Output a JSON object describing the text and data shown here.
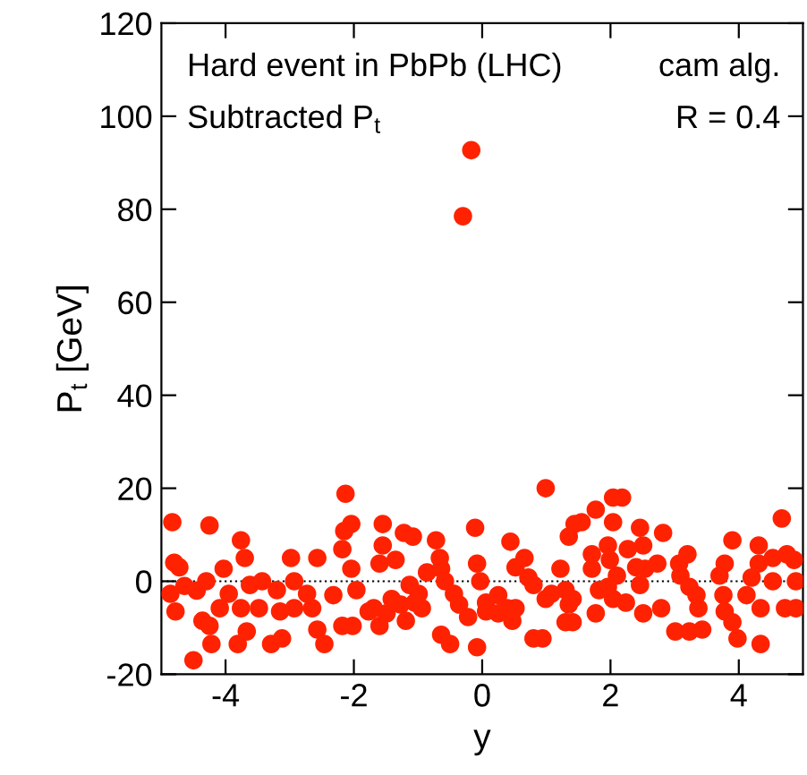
{
  "chart_data": {
    "type": "scatter",
    "xlabel": "y",
    "ylabel": "P$_{t}$ [GeV]",
    "annotations": [
      "Hard event in PbPb (LHC)",
      "Subtracted P$_{t}$",
      "cam alg.",
      "R = 0.4"
    ],
    "xlim": [
      -5,
      5
    ],
    "ylim": [
      -20,
      120
    ],
    "xticks": [
      -4,
      -2,
      0,
      2,
      4
    ],
    "yticks": [
      -20,
      0,
      20,
      40,
      60,
      80,
      100,
      120
    ],
    "grid": false,
    "marker": "circle",
    "ref_lines": [
      {
        "axis": "y",
        "value": 0,
        "color": "#000000",
        "line_style": "dotted"
      }
    ],
    "series": [
      {
        "color": "#ff2200",
        "x": [
          -4.83,
          -4.25,
          -4.8,
          -4.72,
          -4.86,
          -4.78,
          -4.64,
          -4.45,
          -4.3,
          -4.36,
          -4.25,
          -4.22,
          -4.5,
          -4.03,
          -4.09,
          -3.95,
          -3.76,
          -3.7,
          -3.76,
          -3.62,
          -3.67,
          -3.81,
          -3.43,
          -3.48,
          -3.29,
          -3.12,
          -3.2,
          -3.15,
          -2.98,
          -2.93,
          -2.93,
          -2.73,
          -2.65,
          -2.57,
          -2.57,
          -2.46,
          -2.32,
          -2.18,
          -2.02,
          -2.18,
          -2.15,
          -2.04,
          -2.13,
          -2.04,
          -1.96,
          -1.77,
          -1.55,
          -1.22,
          -1.08,
          -1.55,
          -1.6,
          -1.35,
          -1.69,
          -1.49,
          -1.6,
          -1.41,
          -1.27,
          -1.19,
          -1.13,
          -0.99,
          -1.05,
          -0.94,
          -0.86,
          -0.72,
          -0.66,
          -0.64,
          -0.58,
          -0.44,
          -0.36,
          -0.22,
          -0.64,
          -0.5,
          -0.11,
          -0.08,
          -0.03,
          0.06,
          0.06,
          0.25,
          0.25,
          -0.08,
          0.44,
          0.52,
          0.66,
          0.72,
          0.39,
          0.47,
          0.52,
          0.8,
          0.94,
          0.8,
          0.99,
          1.08,
          1.22,
          1.3,
          1.35,
          1.3,
          0.99,
          1.35,
          1.44,
          1.55,
          1.77,
          2.04,
          2.18,
          2.04,
          1.71,
          1.71,
          1.82,
          1.41,
          1.41,
          1.77,
          1.96,
          1.99,
          2.1,
          1.96,
          2.04,
          2.24,
          2.27,
          2.46,
          2.51,
          2.4,
          2.46,
          2.54,
          2.51,
          2.73,
          2.82,
          2.79,
          3.07,
          3.2,
          3.09,
          3.23,
          3.34,
          3.37,
          3.01,
          3.23,
          3.43,
          3.7,
          3.78,
          3.9,
          3.76,
          3.78,
          3.9,
          3.98,
          4.12,
          4.2,
          4.31,
          4.31,
          4.34,
          4.34,
          4.53,
          4.53,
          4.67,
          4.72,
          4.75,
          4.86,
          4.89,
          4.89,
          -0.3,
          -0.17
        ],
        "values": [
          12.7,
          12,
          4,
          3,
          -2.7,
          -6.5,
          -1,
          -2,
          0,
          -8.5,
          -9.6,
          -13.5,
          -17,
          2.7,
          -5.8,
          -2.7,
          8.8,
          5,
          -5.8,
          -0.8,
          -10.8,
          -13.5,
          0,
          -5.8,
          -13.5,
          -12.3,
          -1.9,
          -6.5,
          5,
          0,
          -5.8,
          -2.7,
          -5.8,
          5,
          -10.4,
          -13.5,
          -3,
          -9.6,
          -9.6,
          6.9,
          10.8,
          12.3,
          18.8,
          2.7,
          -1.9,
          -6.5,
          12.3,
          10.4,
          9.6,
          7.7,
          3.8,
          4.6,
          -5.8,
          -6.9,
          -9.6,
          -3.8,
          -5,
          -8.5,
          -0.8,
          -2.7,
          -4.6,
          -5.8,
          1.9,
          8.8,
          5,
          2.7,
          0,
          -2.7,
          -5,
          -7.7,
          -11.5,
          -13.5,
          11.5,
          3.8,
          0,
          -4.6,
          -6.5,
          -3,
          -6.9,
          -14.2,
          8.5,
          3,
          5,
          0.8,
          -5.8,
          -8.5,
          -5.8,
          -12.3,
          -12.3,
          -0.8,
          -3.8,
          -2.7,
          2.7,
          -1.9,
          -5,
          -8.8,
          20,
          9.6,
          12.3,
          12.7,
          15.4,
          18,
          18,
          12.7,
          5.8,
          2.7,
          -1.9,
          -3.8,
          -8.8,
          -6.9,
          7.7,
          4.6,
          1.2,
          -1.2,
          -3.8,
          -4.6,
          6.9,
          11.5,
          7.7,
          3,
          -0.8,
          2.7,
          -6.9,
          3.8,
          10.4,
          -5.8,
          3.8,
          5.8,
          1.2,
          -1.2,
          -3,
          -5.8,
          -10.8,
          -10.8,
          -10.4,
          1.2,
          3.8,
          8.8,
          -3,
          -6.5,
          -8.8,
          -12.3,
          -3,
          0.8,
          7.7,
          3.8,
          -5.8,
          -13.5,
          5,
          0,
          13.5,
          -5.8,
          5.8,
          4.6,
          0,
          -5.8,
          78.5,
          92.7
        ]
      }
    ]
  }
}
